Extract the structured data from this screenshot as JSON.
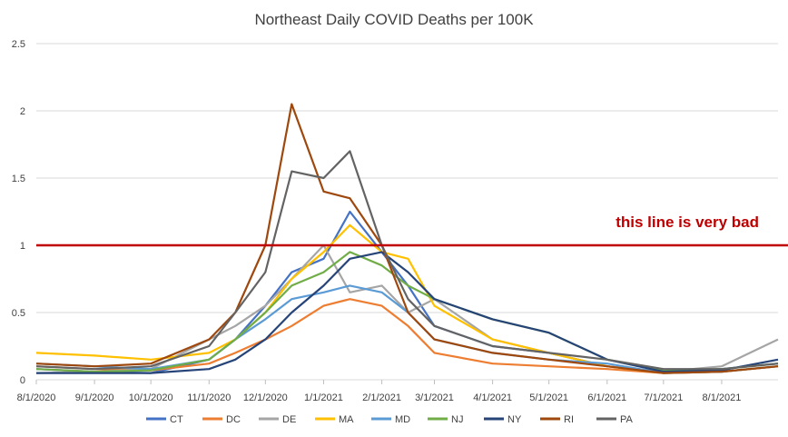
{
  "chart_data": {
    "type": "line",
    "title": "Northeast Daily COVID Deaths per 100K",
    "xlabel": "",
    "ylabel": "",
    "ylim": [
      0,
      2.5
    ],
    "y_ticks": [
      "0",
      "0.5",
      "1",
      "1.5",
      "2",
      "2.5"
    ],
    "x_ticks": [
      "8/1/2020",
      "9/1/2020",
      "10/1/2020",
      "11/1/2020",
      "12/1/2020",
      "1/1/2021",
      "2/1/2021",
      "3/1/2021",
      "4/1/2021",
      "5/1/2021",
      "6/1/2021",
      "7/1/2021",
      "8/1/2021"
    ],
    "grid": "horizontal",
    "legend_position": "bottom",
    "reference_line": {
      "y": 1,
      "color": "#c00000",
      "label": "this line is very bad"
    },
    "x_anchor_dates": [
      "8/1/2020",
      "9/1/2020",
      "10/1/2020",
      "11/1/2020",
      "11/15/2020",
      "12/1/2020",
      "12/15/2020",
      "1/1/2021",
      "1/15/2021",
      "2/1/2021",
      "2/15/2021",
      "3/1/2021",
      "4/1/2021",
      "5/1/2021",
      "6/1/2021",
      "7/1/2021",
      "8/1/2021",
      "8/31/2021"
    ],
    "series": [
      {
        "name": "CT",
        "color": "#4472c4",
        "values": [
          0.08,
          0.06,
          0.05,
          0.15,
          0.3,
          0.55,
          0.8,
          0.9,
          1.25,
          0.95,
          0.7,
          0.4,
          0.25,
          0.2,
          0.1,
          0.06,
          0.08,
          0.12
        ]
      },
      {
        "name": "DC",
        "color": "#ed7d31",
        "values": [
          0.1,
          0.08,
          0.07,
          0.12,
          0.2,
          0.3,
          0.4,
          0.55,
          0.6,
          0.55,
          0.4,
          0.2,
          0.12,
          0.1,
          0.08,
          0.05,
          0.06,
          0.1
        ]
      },
      {
        "name": "DE",
        "color": "#a5a5a5",
        "values": [
          0.05,
          0.06,
          0.08,
          0.3,
          0.4,
          0.55,
          0.75,
          1.0,
          0.65,
          0.7,
          0.5,
          0.6,
          0.3,
          0.2,
          0.1,
          0.06,
          0.1,
          0.3
        ]
      },
      {
        "name": "MA",
        "color": "#ffc000",
        "values": [
          0.2,
          0.18,
          0.15,
          0.2,
          0.3,
          0.5,
          0.75,
          0.95,
          1.15,
          0.95,
          0.9,
          0.55,
          0.3,
          0.2,
          0.1,
          0.05,
          0.06,
          0.1
        ]
      },
      {
        "name": "MD",
        "color": "#5b9bd5",
        "values": [
          0.12,
          0.1,
          0.08,
          0.15,
          0.3,
          0.45,
          0.6,
          0.65,
          0.7,
          0.65,
          0.5,
          0.3,
          0.2,
          0.15,
          0.12,
          0.05,
          0.06,
          0.1
        ]
      },
      {
        "name": "NJ",
        "color": "#70ad47",
        "values": [
          0.08,
          0.06,
          0.07,
          0.15,
          0.3,
          0.5,
          0.7,
          0.8,
          0.95,
          0.85,
          0.7,
          0.6,
          0.45,
          0.35,
          0.15,
          0.07,
          0.08,
          0.12
        ]
      },
      {
        "name": "NY",
        "color": "#264478",
        "values": [
          0.05,
          0.05,
          0.05,
          0.08,
          0.15,
          0.3,
          0.5,
          0.7,
          0.9,
          0.95,
          0.8,
          0.6,
          0.45,
          0.35,
          0.15,
          0.06,
          0.07,
          0.15
        ]
      },
      {
        "name": "RI",
        "color": "#9e480e",
        "values": [
          0.12,
          0.1,
          0.12,
          0.3,
          0.5,
          1.0,
          2.05,
          1.4,
          1.35,
          1.0,
          0.5,
          0.3,
          0.2,
          0.15,
          0.1,
          0.05,
          0.06,
          0.1
        ]
      },
      {
        "name": "PA",
        "color": "#636363",
        "values": [
          0.1,
          0.08,
          0.1,
          0.25,
          0.5,
          0.8,
          1.55,
          1.5,
          1.7,
          1.0,
          0.6,
          0.4,
          0.25,
          0.2,
          0.15,
          0.08,
          0.08,
          0.12
        ]
      }
    ]
  }
}
